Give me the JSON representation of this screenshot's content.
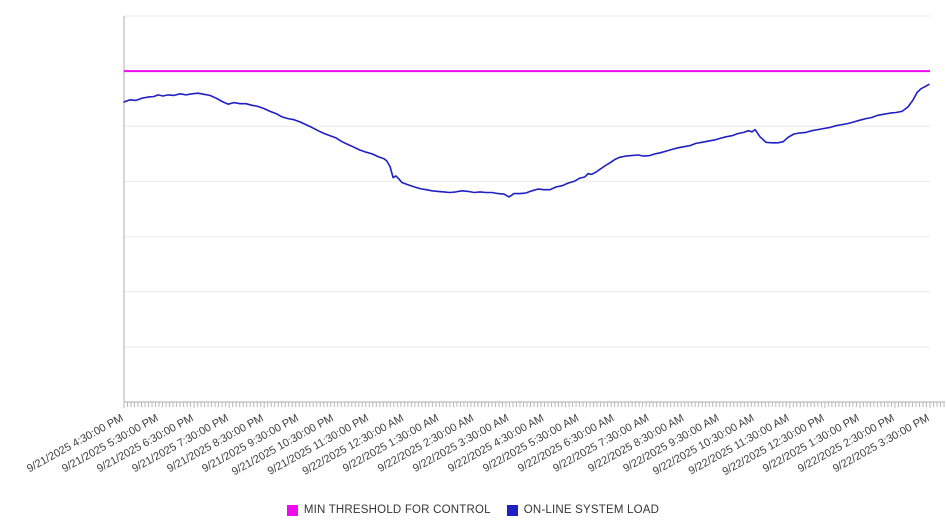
{
  "chart_data": {
    "type": "line",
    "title": "",
    "legend_position": "bottom",
    "x_axis": {
      "range_hours": [
        0,
        23
      ],
      "minor_tick_interval_hours": 0.1,
      "tick_labels": [
        "9/21/2025 4:30:00 PM",
        "9/21/2025 5:30:00 PM",
        "9/21/2025 6:30:00 PM",
        "9/21/2025 7:30:00 PM",
        "9/21/2025 8:30:00 PM",
        "9/21/2025 9:30:00 PM",
        "9/21/2025 10:30:00 PM",
        "9/21/2025 11:30:00 PM",
        "9/22/2025 12:30:00 AM",
        "9/22/2025 1:30:00 AM",
        "9/22/2025 2:30:00 AM",
        "9/22/2025 3:30:00 AM",
        "9/22/2025 4:30:00 AM",
        "9/22/2025 5:30:00 AM",
        "9/22/2025 6:30:00 AM",
        "9/22/2025 7:30:00 AM",
        "9/22/2025 8:30:00 AM",
        "9/22/2025 9:30:00 AM",
        "9/22/2025 10:30:00 AM",
        "9/22/2025 11:30:00 AM",
        "9/22/2025 12:30:00 PM",
        "9/22/2025 1:30:00 PM",
        "9/22/2025 2:30:00 PM",
        "9/22/2025 3:30:00 PM"
      ]
    },
    "y_axis": {
      "range": [
        0,
        700
      ],
      "gridline_step": 100,
      "tick_labels_visible": false
    },
    "threshold": {
      "name": "MIN THRESHOLD FOR CONTROL",
      "value": 600,
      "color": "#ee0bee"
    },
    "series": [
      {
        "name": "ON-LINE SYSTEM LOAD",
        "color": "#1f1fc4",
        "points": [
          [
            0,
            544
          ],
          [
            0.17,
            548
          ],
          [
            0.34,
            547
          ],
          [
            0.51,
            551
          ],
          [
            0.68,
            553
          ],
          [
            0.86,
            554
          ],
          [
            0.97,
            557
          ],
          [
            1.11,
            555
          ],
          [
            1.26,
            557
          ],
          [
            1.43,
            556
          ],
          [
            1.6,
            559
          ],
          [
            1.77,
            557
          ],
          [
            1.94,
            559
          ],
          [
            2.11,
            560
          ],
          [
            2.28,
            558
          ],
          [
            2.45,
            556
          ],
          [
            2.63,
            551
          ],
          [
            2.8,
            545
          ],
          [
            2.97,
            540
          ],
          [
            3.14,
            543
          ],
          [
            3.31,
            541
          ],
          [
            3.48,
            541
          ],
          [
            3.65,
            538
          ],
          [
            3.82,
            536
          ],
          [
            4,
            532
          ],
          [
            4.17,
            527
          ],
          [
            4.34,
            523
          ],
          [
            4.51,
            517
          ],
          [
            4.68,
            514
          ],
          [
            4.85,
            512
          ],
          [
            5.02,
            508
          ],
          [
            5.19,
            503
          ],
          [
            5.36,
            498
          ],
          [
            5.54,
            492
          ],
          [
            5.71,
            487
          ],
          [
            5.88,
            483
          ],
          [
            6.05,
            479
          ],
          [
            6.22,
            472
          ],
          [
            6.39,
            467
          ],
          [
            6.56,
            462
          ],
          [
            6.73,
            457
          ],
          [
            6.91,
            453
          ],
          [
            7.08,
            450
          ],
          [
            7.25,
            445
          ],
          [
            7.42,
            441
          ],
          [
            7.5,
            437
          ],
          [
            7.59,
            427
          ],
          [
            7.68,
            407
          ],
          [
            7.76,
            410
          ],
          [
            7.85,
            404
          ],
          [
            7.93,
            398
          ],
          [
            8.1,
            394
          ],
          [
            8.28,
            390
          ],
          [
            8.45,
            387
          ],
          [
            8.62,
            385
          ],
          [
            8.79,
            383
          ],
          [
            8.96,
            382
          ],
          [
            9.13,
            381
          ],
          [
            9.3,
            380
          ],
          [
            9.47,
            381
          ],
          [
            9.64,
            383
          ],
          [
            9.82,
            382
          ],
          [
            9.99,
            380
          ],
          [
            10.16,
            381
          ],
          [
            10.33,
            380
          ],
          [
            10.5,
            380
          ],
          [
            10.67,
            378
          ],
          [
            10.84,
            377
          ],
          [
            10.99,
            372
          ],
          [
            11.13,
            378
          ],
          [
            11.3,
            378
          ],
          [
            11.47,
            379
          ],
          [
            11.64,
            383
          ],
          [
            11.81,
            386
          ],
          [
            11.99,
            385
          ],
          [
            12.16,
            385
          ],
          [
            12.33,
            390
          ],
          [
            12.5,
            392
          ],
          [
            12.67,
            397
          ],
          [
            12.84,
            400
          ],
          [
            13.01,
            406
          ],
          [
            13.15,
            408
          ],
          [
            13.24,
            414
          ],
          [
            13.35,
            413
          ],
          [
            13.47,
            417
          ],
          [
            13.58,
            422
          ],
          [
            13.72,
            428
          ],
          [
            13.87,
            434
          ],
          [
            14.01,
            440
          ],
          [
            14.15,
            444
          ],
          [
            14.32,
            446
          ],
          [
            14.5,
            447
          ],
          [
            14.67,
            448
          ],
          [
            14.84,
            446
          ],
          [
            15.01,
            447
          ],
          [
            15.15,
            450
          ],
          [
            15.3,
            452
          ],
          [
            15.47,
            455
          ],
          [
            15.64,
            458
          ],
          [
            15.81,
            461
          ],
          [
            15.98,
            463
          ],
          [
            16.15,
            465
          ],
          [
            16.32,
            469
          ],
          [
            16.49,
            471
          ],
          [
            16.66,
            473
          ],
          [
            16.84,
            475
          ],
          [
            17.01,
            478
          ],
          [
            17.18,
            481
          ],
          [
            17.35,
            483
          ],
          [
            17.52,
            487
          ],
          [
            17.69,
            489
          ],
          [
            17.81,
            492
          ],
          [
            17.92,
            490
          ],
          [
            18.01,
            494
          ],
          [
            18.15,
            481
          ],
          [
            18.32,
            471
          ],
          [
            18.49,
            470
          ],
          [
            18.66,
            470
          ],
          [
            18.81,
            472
          ],
          [
            18.95,
            480
          ],
          [
            19.12,
            486
          ],
          [
            19.29,
            488
          ],
          [
            19.46,
            489
          ],
          [
            19.63,
            492
          ],
          [
            19.8,
            494
          ],
          [
            19.97,
            496
          ],
          [
            20.15,
            498
          ],
          [
            20.32,
            501
          ],
          [
            20.49,
            503
          ],
          [
            20.66,
            505
          ],
          [
            20.83,
            508
          ],
          [
            21,
            511
          ],
          [
            21.17,
            514
          ],
          [
            21.34,
            516
          ],
          [
            21.51,
            520
          ],
          [
            21.69,
            522
          ],
          [
            21.86,
            524
          ],
          [
            22.03,
            525
          ],
          [
            22.2,
            527
          ],
          [
            22.37,
            535
          ],
          [
            22.51,
            547
          ],
          [
            22.63,
            561
          ],
          [
            22.74,
            568
          ],
          [
            22.86,
            572
          ],
          [
            22.97,
            576
          ]
        ]
      }
    ]
  }
}
